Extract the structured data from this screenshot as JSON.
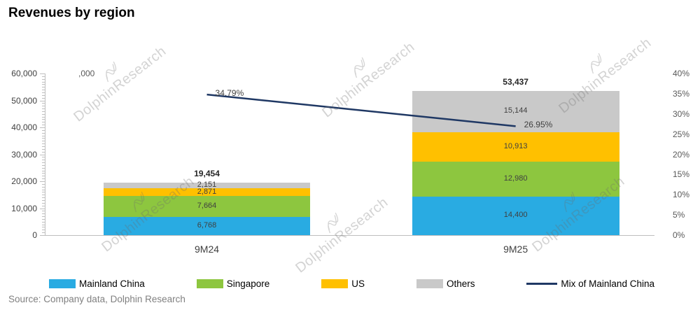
{
  "title": "Revenues by region",
  "source": "Source:  Company data, Dolphin Research",
  "watermark": "DolphinResearch",
  "axis_unit": ",000",
  "legend": [
    {
      "label": "Mainland China",
      "color": "#29ABE2",
      "type": "swatch"
    },
    {
      "label": "Singapore",
      "color": "#8DC63F",
      "type": "swatch"
    },
    {
      "label": "US",
      "color": "#FFC000",
      "type": "swatch"
    },
    {
      "label": "Others",
      "color": "#C9C9C9",
      "type": "swatch"
    },
    {
      "label": "Mix of Mainland China",
      "color": "#1F3864",
      "type": "line"
    }
  ],
  "chart_data": {
    "type": "bar",
    "stacked": true,
    "title": "Revenues by region",
    "categories": [
      "9M24",
      "9M25"
    ],
    "series": [
      {
        "name": "Mainland China",
        "color": "#29ABE2",
        "values": [
          6768,
          14400
        ]
      },
      {
        "name": "Singapore",
        "color": "#8DC63F",
        "values": [
          7664,
          12980
        ]
      },
      {
        "name": "US",
        "color": "#FFC000",
        "values": [
          2871,
          10913
        ]
      },
      {
        "name": "Others",
        "color": "#C9C9C9",
        "values": [
          2151,
          15144
        ]
      }
    ],
    "totals": [
      19454,
      53437
    ],
    "line_series": {
      "name": "Mix of Mainland China",
      "color": "#1F3864",
      "values": [
        34.79,
        26.95
      ],
      "labels": [
        "34.79%",
        "26.95%"
      ]
    },
    "left_axis": {
      "min": 0,
      "max": 60000,
      "step": 10000,
      "tick_labels": [
        "0",
        "10,000",
        "20,000",
        "30,000",
        "40,000",
        "50,000",
        "60,000"
      ]
    },
    "right_axis": {
      "min": 0,
      "max": 40,
      "step": 5,
      "tick_labels": [
        "0%",
        "5%",
        "10%",
        "15%",
        "20%",
        "25%",
        "30%",
        "35%",
        "40%"
      ]
    },
    "grid": false,
    "legend_position": "bottom"
  }
}
